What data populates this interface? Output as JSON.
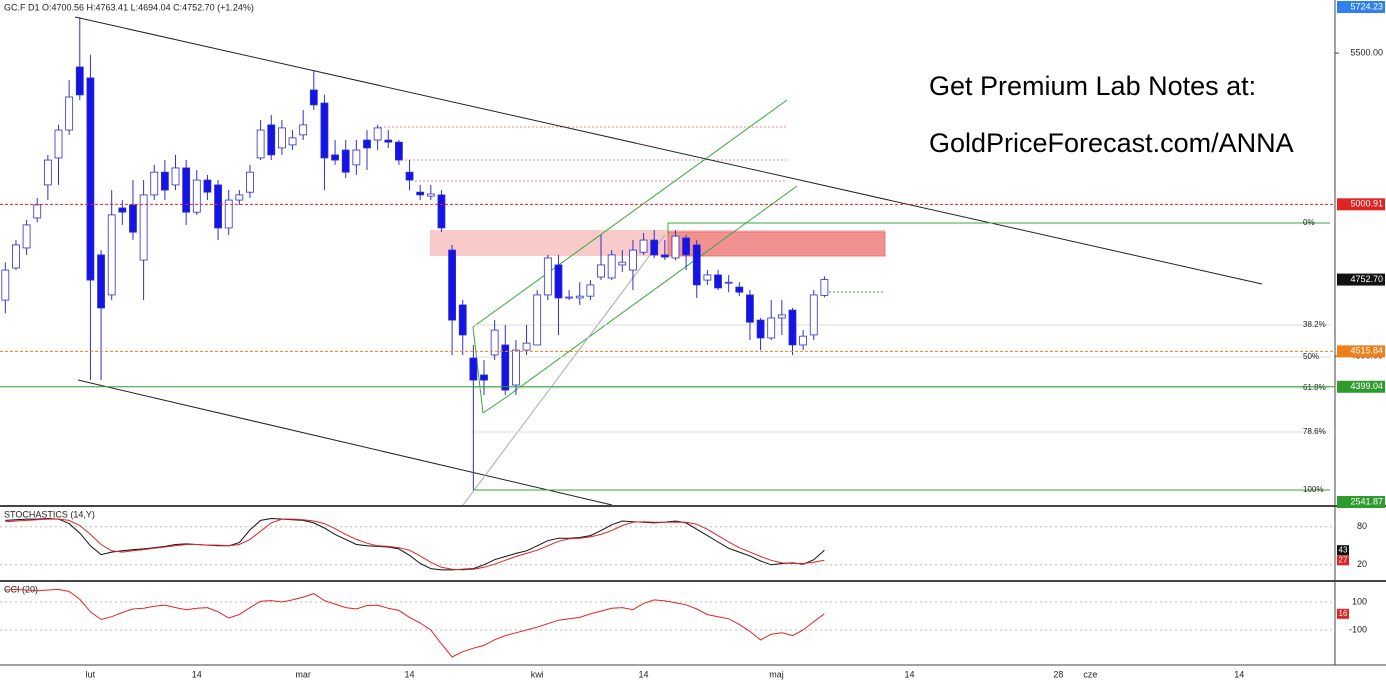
{
  "chart_data": [
    {
      "type": "candlestick",
      "title": "GC.F  D1  O:4700.56  H:4763.41  L:4694.04  C:4752.70  (+1.24%)",
      "annotations": [
        "Get Premium Lab Notes at:",
        "GoldPriceForecast.com/ANNA"
      ],
      "fib_labels": [
        "0%",
        "38.2%",
        "50%",
        "61.8%",
        "78.6%",
        "100%"
      ],
      "xlim": [
        -0.5,
        125
      ],
      "xticks": [
        {
          "value": 8,
          "label": "lut"
        },
        {
          "value": 18,
          "label": "14"
        },
        {
          "value": 28,
          "label": "mar"
        },
        {
          "value": 38,
          "label": "14"
        },
        {
          "value": 50,
          "label": "kwi"
        },
        {
          "value": 60,
          "label": "14"
        },
        {
          "value": 72.5,
          "label": "maj"
        },
        {
          "value": 85,
          "label": "14"
        },
        {
          "value": 99,
          "label": "28"
        },
        {
          "value": 102,
          "label": "cze"
        },
        {
          "value": 116,
          "label": "14"
        }
      ],
      "ylim": [
        4009,
        5675
      ],
      "yticks": [
        {
          "value": 5500,
          "label": "5500.00"
        },
        {
          "value": 4500,
          "label": "4500.00"
        }
      ],
      "up_color": "#ffffff",
      "down_color": "#1414e6",
      "wick_color": "#3030c8",
      "open": [
        4685,
        4791,
        4857,
        4956,
        5065,
        5154,
        5246,
        5454,
        5418,
        4834,
        4702,
        4989,
        4999,
        4817,
        5032,
        5107,
        5065,
        5121,
        4975,
        5081,
        5065,
        4923,
        5015,
        5041,
        5154,
        5263,
        5187,
        5197,
        5230,
        5378,
        5335,
        5164,
        5180,
        5131,
        5213,
        5213,
        5213,
        5206,
        5107,
        5041,
        5028,
        5032,
        4850,
        4669,
        4494,
        4438,
        4504,
        4537,
        4405,
        4520,
        4537,
        4702,
        4801,
        4692,
        4692,
        4698,
        4761,
        4758,
        4801,
        4784,
        4843,
        4883,
        4834,
        4824,
        4890,
        4867,
        4751,
        4768,
        4741,
        4728,
        4702,
        4619,
        4560,
        4626,
        4652,
        4537,
        4570,
        4700.56
      ],
      "high": [
        4810,
        4883,
        4949,
        5022,
        5164,
        5263,
        5411,
        5619,
        5494,
        4850,
        5048,
        5015,
        5081,
        5081,
        5131,
        5147,
        5164,
        5147,
        5114,
        5098,
        5081,
        5048,
        5048,
        5131,
        5279,
        5296,
        5279,
        5246,
        5312,
        5444,
        5362,
        5213,
        5213,
        5213,
        5246,
        5263,
        5246,
        5213,
        5147,
        5065,
        5065,
        5048,
        4867,
        4685,
        4537,
        4487,
        4619,
        4603,
        4553,
        4603,
        4718,
        4834,
        4834,
        4718,
        4744,
        4751,
        4900,
        4850,
        4850,
        4883,
        4906,
        4916,
        4883,
        4916,
        4900,
        4883,
        4784,
        4784,
        4768,
        4744,
        4718,
        4626,
        4685,
        4685,
        4659,
        4586,
        4718,
        4763.41
      ],
      "low": [
        4642,
        4784,
        4834,
        4942,
        5015,
        5065,
        5230,
        5345,
        4421,
        4421,
        4685,
        4933,
        4883,
        4685,
        5015,
        5015,
        5048,
        4933,
        4966,
        5015,
        4883,
        4900,
        4999,
        5022,
        5147,
        5147,
        5164,
        5180,
        5213,
        5312,
        5048,
        5131,
        5088,
        5098,
        5114,
        5180,
        5187,
        5131,
        5048,
        5015,
        5015,
        4909,
        4504,
        4504,
        4058,
        4372,
        4487,
        4372,
        4372,
        4504,
        4537,
        4685,
        4570,
        4685,
        4669,
        4685,
        4751,
        4751,
        4777,
        4718,
        4834,
        4824,
        4817,
        4817,
        4784,
        4692,
        4735,
        4718,
        4711,
        4698,
        4553,
        4520,
        4553,
        4570,
        4504,
        4520,
        4553,
        4694.04
      ],
      "close": [
        4784,
        4867,
        4933,
        4999,
        5147,
        5246,
        5355,
        5362,
        4751,
        4659,
        4966,
        4975,
        4909,
        5032,
        5107,
        5048,
        5121,
        4975,
        5081,
        5041,
        4923,
        5015,
        5032,
        5107,
        5246,
        5164,
        5253,
        5220,
        5263,
        5329,
        5154,
        5147,
        5107,
        5180,
        5187,
        5253,
        5206,
        5147,
        5081,
        5032,
        5035,
        4923,
        4619,
        4570,
        4421,
        4421,
        4586,
        4388,
        4520,
        4543,
        4702,
        4824,
        4692,
        4695,
        4698,
        4735,
        4801,
        4834,
        4810,
        4850,
        4883,
        4834,
        4827,
        4896,
        4834,
        4735,
        4768,
        4725,
        4744,
        4711,
        4612,
        4560,
        4626,
        4636,
        4537,
        4566,
        4702,
        4752.7
      ],
      "price_tags": [
        {
          "value": 5724.23,
          "label": "5724.23",
          "color": "#2f80ed"
        },
        {
          "value": 5000.91,
          "label": "5000.91",
          "color": "#e02424",
          "line": "dashed"
        },
        {
          "value": 4752.7,
          "label": "4752.70",
          "color": "#111111"
        },
        {
          "value": 4515.84,
          "label": "4515.84",
          "color": "#f07f1a",
          "line": "dashed"
        },
        {
          "value": 4399.04,
          "label": "4399.04",
          "color": "#2e9b2e",
          "line": "solid"
        },
        {
          "value": 2541.87,
          "label": "2541.87",
          "color": "#2e9b2e"
        }
      ]
    },
    {
      "type": "line",
      "title": "STOCHASTICS (14,Y)",
      "ylim": [
        -4,
        108
      ],
      "yticks": [
        80,
        20
      ],
      "series": [
        {
          "color": "#111111",
          "values": [
            90,
            91,
            92,
            92,
            93,
            92,
            85,
            70,
            50,
            36,
            40,
            42,
            44,
            45,
            47,
            49,
            52,
            53,
            52,
            51,
            50,
            50,
            55,
            75,
            90,
            93,
            92,
            91,
            90,
            86,
            78,
            68,
            60,
            52,
            50,
            49,
            48,
            45,
            35,
            22,
            14,
            12,
            12,
            13,
            14,
            20,
            28,
            33,
            38,
            42,
            50,
            58,
            62,
            62,
            63,
            66,
            74,
            83,
            89,
            88,
            87,
            86,
            87,
            89,
            86,
            76,
            66,
            56,
            46,
            40,
            34,
            26,
            20,
            22,
            23,
            21,
            28,
            43
          ]
        },
        {
          "color": "#e02424",
          "values": [
            88,
            89,
            90,
            91,
            92,
            92,
            90,
            82,
            68,
            52,
            42,
            40,
            42,
            44,
            46,
            48,
            50,
            52,
            52,
            51,
            51,
            50,
            52,
            60,
            73,
            86,
            92,
            92,
            91,
            89,
            85,
            77,
            68,
            60,
            54,
            50,
            49,
            47,
            43,
            34,
            24,
            16,
            13,
            12,
            13,
            16,
            21,
            27,
            33,
            38,
            43,
            50,
            57,
            61,
            62,
            64,
            68,
            74,
            82,
            87,
            88,
            87,
            87,
            87,
            87,
            84,
            76,
            66,
            56,
            47,
            40,
            33,
            27,
            23,
            22,
            22,
            24,
            27
          ]
        }
      ],
      "tags": [
        {
          "value": 43,
          "color": "#111111"
        },
        {
          "value": 27,
          "color": "#e02424"
        }
      ]
    },
    {
      "type": "line",
      "title": "CCI (20)",
      "ylim": [
        -350,
        236
      ],
      "yticks": [
        100,
        -100
      ],
      "series": [
        {
          "color": "#e02424",
          "values": [
            186,
            190,
            186,
            180,
            186,
            190,
            175,
            120,
            30,
            -25,
            -5,
            25,
            50,
            55,
            70,
            78,
            60,
            45,
            55,
            60,
            30,
            -14,
            10,
            60,
            105,
            110,
            100,
            115,
            135,
            160,
            110,
            85,
            60,
            50,
            75,
            78,
            55,
            40,
            -10,
            -50,
            -100,
            -200,
            -293,
            -255,
            -230,
            -210,
            -170,
            -140,
            -120,
            -100,
            -80,
            -55,
            -30,
            -20,
            -10,
            15,
            35,
            55,
            60,
            45,
            90,
            115,
            108,
            95,
            80,
            50,
            10,
            -5,
            -20,
            -60,
            -110,
            -171,
            -130,
            -120,
            -140,
            -100,
            -40,
            16
          ]
        }
      ],
      "tags": [
        {
          "value": 16,
          "color": "#e02424"
        }
      ]
    }
  ]
}
